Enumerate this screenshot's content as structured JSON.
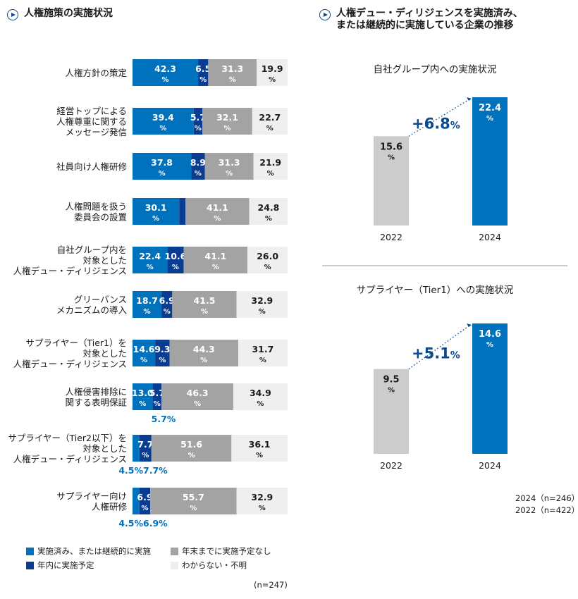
{
  "left_heading": "人権施策の実施状況",
  "right_heading_line1": "人権デュー・ディリジェンスを実施済み、",
  "right_heading_line2": "または継続的に実施している企業の推移",
  "colors": {
    "done": "#0071bc",
    "within_year": "#0a3d91",
    "by_year_end": "#a3a3a3",
    "unknown": "#efefef",
    "bar_2022": "#cccccc",
    "bar_2024": "#0071bc",
    "delta_text": "#0a4a8f"
  },
  "legend": {
    "done": "実施済み、または継続的に実施",
    "by_year_end": "年末までに実施予定なし",
    "within_year": "年内に実施予定",
    "unknown": "わからない・不明"
  },
  "left_n": "(n=247)",
  "right_n_2024": "2024（n=246）",
  "right_n_2022": "2022（n=422）",
  "chart_data": [
    {
      "type": "bar",
      "orientation": "horizontal",
      "stacked": true,
      "title": "人権施策の実施状況",
      "unit": "%",
      "categories": [
        [
          "人権方針の策定"
        ],
        [
          "経営トップによる",
          "人権尊重に関する",
          "メッセージ発信"
        ],
        [
          "社員向け人権研修"
        ],
        [
          "人権問題を扱う",
          "委員会の設置"
        ],
        [
          "自社グループ内を",
          "対象とした",
          "人権デュー・ディリジェンス"
        ],
        [
          "グリーバンス",
          "メカニズムの導入"
        ],
        [
          "サプライヤー（Tier1）を",
          "対象とした",
          "人権デュー・ディリジェンス"
        ],
        [
          "人権侵害排除に",
          "関する表明保証"
        ],
        [
          "サプライヤー（Tier2以下）を",
          "対象とした",
          "人権デュー・ディリジェンス"
        ],
        [
          "サプライヤー向け",
          "人権研修"
        ]
      ],
      "series": [
        {
          "name": "実施済み、または継続的に実施",
          "values": [
            42.3,
            39.4,
            37.8,
            30.1,
            22.4,
            18.7,
            14.6,
            13.0,
            4.5,
            4.5
          ]
        },
        {
          "name": "年内に実施予定",
          "values": [
            6.5,
            5.7,
            8.9,
            4.1,
            10.6,
            6.9,
            9.3,
            5.7,
            7.7,
            6.9
          ]
        },
        {
          "name": "年末までに実施予定なし",
          "values": [
            31.3,
            32.1,
            31.3,
            41.1,
            41.1,
            41.5,
            44.3,
            46.3,
            51.6,
            55.7
          ]
        },
        {
          "name": "わからない・不明",
          "values": [
            19.9,
            22.7,
            21.9,
            24.8,
            26.0,
            32.9,
            31.7,
            34.9,
            36.1,
            32.9
          ]
        }
      ],
      "outside_labels": [
        {
          "row": 7,
          "text": "5.7%"
        },
        {
          "row": 8,
          "text": "4.5%7.7%"
        },
        {
          "row": 9,
          "text": "4.5%6.9%"
        }
      ],
      "xlim": [
        0,
        100
      ]
    },
    {
      "type": "bar",
      "title": "自社グループ内への実施状況",
      "categories": [
        "2022",
        "2024"
      ],
      "values": [
        15.6,
        22.4
      ],
      "unit": "%",
      "delta_label": "+6.8%",
      "ylim": [
        0,
        22.4
      ]
    },
    {
      "type": "bar",
      "title": "サプライヤー（Tier1）への実施状況",
      "categories": [
        "2022",
        "2024"
      ],
      "values": [
        9.5,
        14.6
      ],
      "unit": "%",
      "delta_label": "+5.1%",
      "ylim": [
        0,
        14.6
      ]
    }
  ]
}
